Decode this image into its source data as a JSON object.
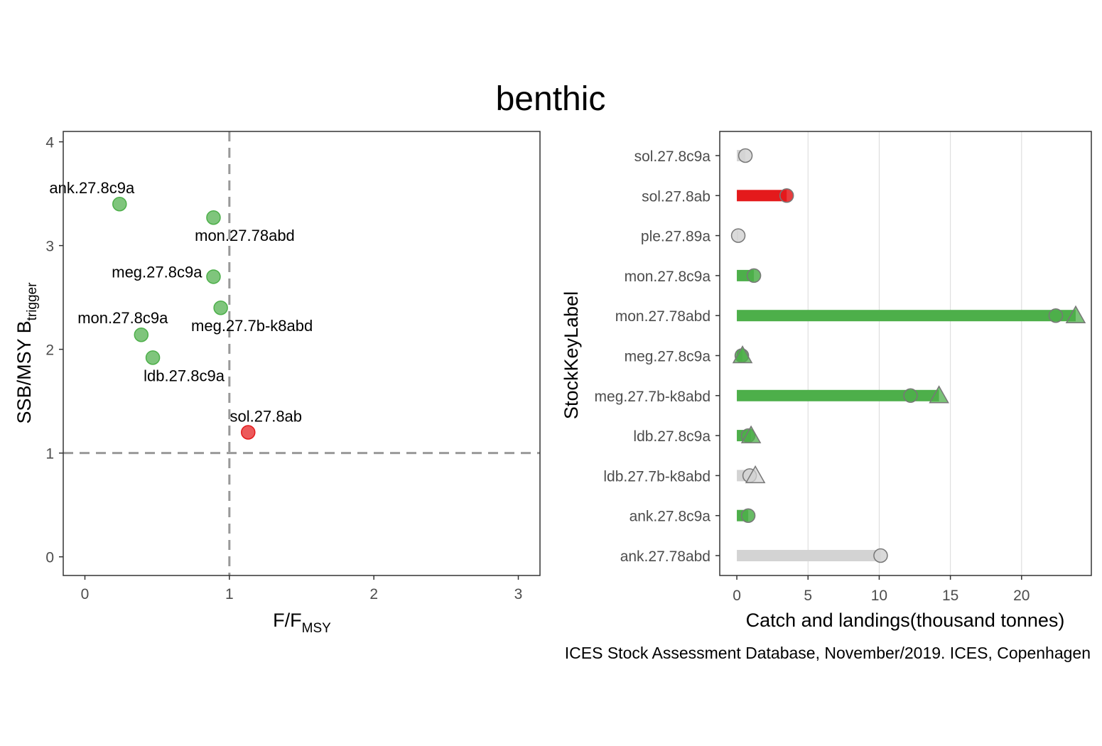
{
  "title": "benthic",
  "caption": "ICES Stock Assessment Database, November/2019. ICES, Copenhagen",
  "colors": {
    "green": "#4daf4a",
    "red": "#e41a1c",
    "grey": "#d3d3d3",
    "ref_line": "#999999"
  },
  "chart_data": [
    {
      "type": "scatter",
      "xlabel_main": "F/F",
      "xlabel_sub": "MSY",
      "ylabel_main": "SSB/MSY B",
      "ylabel_sub": "trigger",
      "xlim": [
        -0.15,
        3.15
      ],
      "ylim": [
        -0.18,
        4.1
      ],
      "xticks": [
        "0",
        "1",
        "2",
        "3"
      ],
      "yticks": [
        "0",
        "1",
        "2",
        "3",
        "4"
      ],
      "ref_lines": {
        "x": 1,
        "y": 1
      },
      "points": [
        {
          "label": "ank.27.8c9a",
          "x": 0.24,
          "y": 3.4,
          "status": "green",
          "label_pos": "above"
        },
        {
          "label": "mon.27.78abd",
          "x": 0.89,
          "y": 3.27,
          "status": "green",
          "label_pos": "below-right"
        },
        {
          "label": "meg.27.8c9a",
          "x": 0.89,
          "y": 2.7,
          "status": "green",
          "label_pos": "left"
        },
        {
          "label": "meg.27.7b-k8abd",
          "x": 0.94,
          "y": 2.4,
          "status": "green",
          "label_pos": "below-right"
        },
        {
          "label": "mon.27.8c9a",
          "x": 0.39,
          "y": 2.14,
          "status": "green",
          "label_pos": "above-left"
        },
        {
          "label": "ldb.27.8c9a",
          "x": 0.47,
          "y": 1.92,
          "status": "green",
          "label_pos": "below-right"
        },
        {
          "label": "sol.27.8ab",
          "x": 1.13,
          "y": 1.2,
          "status": "red",
          "label_pos": "above"
        }
      ]
    },
    {
      "type": "bar",
      "orientation": "horizontal",
      "ylabel": "StockKeyLabel",
      "xlabel": "Catch and landings(thousand tonnes)",
      "xlim": [
        -1.2,
        24.9
      ],
      "xticks": [
        "0",
        "5",
        "10",
        "15",
        "20"
      ],
      "stocks": [
        {
          "label": "sol.27.8c9a",
          "landings": 0.6,
          "catch": null,
          "status": "grey"
        },
        {
          "label": "sol.27.8ab",
          "landings": 3.5,
          "catch": null,
          "status": "red"
        },
        {
          "label": "ple.27.89a",
          "landings": 0.1,
          "catch": null,
          "status": "grey"
        },
        {
          "label": "mon.27.8c9a",
          "landings": 1.2,
          "catch": null,
          "status": "green"
        },
        {
          "label": "mon.27.78abd",
          "landings": 22.4,
          "catch": 23.8,
          "status": "green"
        },
        {
          "label": "meg.27.8c9a",
          "landings": 0.35,
          "catch": 0.4,
          "status": "green"
        },
        {
          "label": "meg.27.7b-k8abd",
          "landings": 12.2,
          "catch": 14.2,
          "status": "green"
        },
        {
          "label": "ldb.27.8c9a",
          "landings": 0.8,
          "catch": 1.0,
          "status": "green"
        },
        {
          "label": "ldb.27.7b-k8abd",
          "landings": 0.9,
          "catch": 1.3,
          "status": "grey"
        },
        {
          "label": "ank.27.8c9a",
          "landings": 0.8,
          "catch": null,
          "status": "green"
        },
        {
          "label": "ank.27.78abd",
          "landings": 10.1,
          "catch": null,
          "status": "grey"
        }
      ]
    }
  ]
}
